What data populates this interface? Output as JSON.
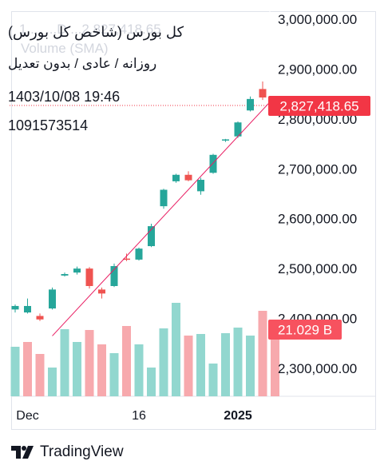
{
  "legend": {
    "title": "کل بورس (شاخص کل بورس)",
    "subtitle": "روزانه / عادی / بدون تعدیل",
    "datetime": "1403/10/08 19:46",
    "volume_value": "1091573514"
  },
  "watermark": {
    "symbol_faint": "1 ... ...D ...2,827,418.65",
    "volume_label": "Volume (SMA)"
  },
  "badges": {
    "price": "2,827,418.65",
    "volume": "21.029 B"
  },
  "footer": {
    "brand": "TradingView"
  },
  "colors": {
    "up": "#26a69a",
    "down": "#ef5350",
    "up_volume": "#92d7cf",
    "down_volume": "#f7a9ad",
    "price_badge": "#f23645",
    "volume_badge": "#f7525f",
    "trendline": "#e91e63"
  },
  "chart_data": {
    "type": "candlestick",
    "y_ticks": [
      "3,000,000.00",
      "2,900,000.00",
      "2,800,000.00",
      "2,700,000.00",
      "2,600,000.00",
      "2,500,000.00",
      "2,400,000.00",
      "2,300,000.00"
    ],
    "y_tick_values": [
      3000000,
      2900000,
      2800000,
      2700000,
      2600000,
      2500000,
      2400000,
      2300000
    ],
    "x_ticks": [
      {
        "label": "Dec",
        "index": 1,
        "bold": false
      },
      {
        "label": "16",
        "index": 10,
        "bold": false
      },
      {
        "label": "2025",
        "index": 18,
        "bold": true
      }
    ],
    "last_price": 2827418.65,
    "candles": [
      {
        "o": 2418000,
        "h": 2428000,
        "l": 2412000,
        "c": 2425000
      },
      {
        "o": 2412000,
        "h": 2440000,
        "l": 2410000,
        "c": 2425000
      },
      {
        "o": 2405000,
        "h": 2410000,
        "l": 2395000,
        "c": 2398000
      },
      {
        "o": 2420000,
        "h": 2462000,
        "l": 2418000,
        "c": 2458000
      },
      {
        "o": 2486000,
        "h": 2492000,
        "l": 2484000,
        "c": 2489000
      },
      {
        "o": 2492000,
        "h": 2504000,
        "l": 2488000,
        "c": 2500000
      },
      {
        "o": 2500000,
        "h": 2503000,
        "l": 2460000,
        "c": 2465000
      },
      {
        "o": 2458000,
        "h": 2462000,
        "l": 2440000,
        "c": 2450000
      },
      {
        "o": 2465000,
        "h": 2510000,
        "l": 2463000,
        "c": 2505000
      },
      {
        "o": 2520000,
        "h": 2530000,
        "l": 2515000,
        "c": 2518000
      },
      {
        "o": 2518000,
        "h": 2542000,
        "l": 2516000,
        "c": 2540000
      },
      {
        "o": 2545000,
        "h": 2590000,
        "l": 2543000,
        "c": 2585000
      },
      {
        "o": 2625000,
        "h": 2660000,
        "l": 2620000,
        "c": 2658000
      },
      {
        "o": 2675000,
        "h": 2690000,
        "l": 2672000,
        "c": 2688000
      },
      {
        "o": 2688000,
        "h": 2695000,
        "l": 2675000,
        "c": 2677000
      },
      {
        "o": 2655000,
        "h": 2682000,
        "l": 2648000,
        "c": 2678000
      },
      {
        "o": 2692000,
        "h": 2730000,
        "l": 2690000,
        "c": 2728000
      },
      {
        "o": 2757000,
        "h": 2760000,
        "l": 2754000,
        "c": 2759000
      },
      {
        "o": 2765000,
        "h": 2795000,
        "l": 2762000,
        "c": 2793000
      },
      {
        "o": 2817000,
        "h": 2845000,
        "l": 2815000,
        "c": 2840000
      },
      {
        "o": 2860000,
        "h": 2875000,
        "l": 2838000,
        "c": 2843000
      },
      {
        "o": 2843000,
        "h": 2846000,
        "l": 2820000,
        "c": 2827418.65
      }
    ],
    "volumes": [
      {
        "v": 0.62,
        "up": true
      },
      {
        "v": 0.68,
        "up": false
      },
      {
        "v": 0.53,
        "up": false
      },
      {
        "v": 0.36,
        "up": true
      },
      {
        "v": 0.84,
        "up": true
      },
      {
        "v": 0.68,
        "up": true
      },
      {
        "v": 0.83,
        "up": false
      },
      {
        "v": 0.65,
        "up": false
      },
      {
        "v": 0.54,
        "up": true
      },
      {
        "v": 0.88,
        "up": false
      },
      {
        "v": 0.65,
        "up": true
      },
      {
        "v": 0.36,
        "up": true
      },
      {
        "v": 0.85,
        "up": true
      },
      {
        "v": 1.17,
        "up": true
      },
      {
        "v": 0.76,
        "up": false
      },
      {
        "v": 0.78,
        "up": true
      },
      {
        "v": 0.41,
        "up": true
      },
      {
        "v": 0.79,
        "up": true
      },
      {
        "v": 0.86,
        "up": true
      },
      {
        "v": 0.76,
        "up": true
      },
      {
        "v": 1.07,
        "up": false
      },
      {
        "v": 0.82,
        "up": false
      }
    ],
    "trendline": {
      "from": {
        "index": 3,
        "value": 2365000
      },
      "to": {
        "index": 21,
        "value": 2845000
      }
    }
  }
}
